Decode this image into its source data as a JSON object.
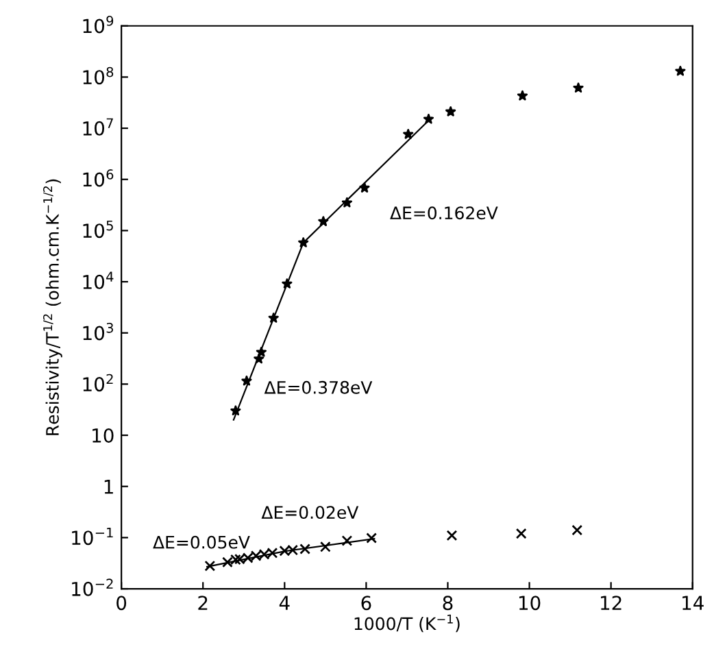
{
  "chart_data": {
    "type": "scatter",
    "xlabel": "1000/T (K$^{−1}$)",
    "ylabel": "Resistivity/T$^{1/2}$ (ohm.cm.K$^{−1/2}$)",
    "log": "y",
    "grid": false,
    "legend": false,
    "xlim": [
      0,
      14
    ],
    "xticks": [
      0,
      2,
      4,
      6,
      8,
      10,
      12,
      14
    ],
    "ylim": [
      0.01,
      1000000000
    ],
    "yticks": [
      {
        "value": 0.01,
        "label": "10$^{−2}$"
      },
      {
        "value": 0.1,
        "label": "10$^{−1}$"
      },
      {
        "value": 1,
        "label": "1"
      },
      {
        "value": 10,
        "label": "10"
      },
      {
        "value": 100,
        "label": "10$^{2}$"
      },
      {
        "value": 1000,
        "label": "10$^{3}$"
      },
      {
        "value": 10000,
        "label": "10$^{4}$"
      },
      {
        "value": 100000,
        "label": "10$^{5}$"
      },
      {
        "value": 1000000,
        "label": "10$^{6}$"
      },
      {
        "value": 10000000,
        "label": "10$^{7}$"
      },
      {
        "value": 100000000,
        "label": "10$^{8}$"
      },
      {
        "value": 1000000000,
        "label": "10$^{9}$"
      }
    ],
    "series": [
      {
        "marker": "star",
        "color": "#000000",
        "x": [
          2.8,
          3.07,
          3.37,
          3.43,
          3.73,
          4.06,
          4.46,
          4.95,
          5.53,
          5.96,
          7.03,
          7.53,
          8.07,
          9.83,
          11.2,
          13.7
        ],
        "values": [
          30,
          115,
          310,
          420,
          1950,
          9100,
          58000,
          150000,
          350000,
          680000,
          7600000,
          15000000,
          21000000,
          43000000,
          61000000,
          130000000
        ]
      },
      {
        "type": "line",
        "marker": "none",
        "color": "#000000",
        "x": [
          2.75,
          4.46
        ],
        "values": [
          20,
          58000
        ]
      },
      {
        "type": "line",
        "marker": "none",
        "color": "#000000",
        "x": [
          4.46,
          7.6
        ],
        "values": [
          58000,
          16000000
        ]
      },
      {
        "marker": "cross",
        "color": "#000000",
        "x": [
          2.17,
          2.6,
          2.8,
          2.9,
          3.1,
          3.3,
          3.5,
          3.7,
          4.0,
          4.2,
          4.5,
          5.0,
          5.53,
          6.13,
          8.1,
          9.8,
          11.17
        ],
        "values": [
          0.028,
          0.033,
          0.037,
          0.038,
          0.04,
          0.044,
          0.047,
          0.05,
          0.055,
          0.057,
          0.06,
          0.066,
          0.087,
          0.098,
          0.11,
          0.12,
          0.14
        ]
      },
      {
        "type": "line",
        "marker": "none",
        "color": "#000000",
        "x": [
          2.1,
          4.0
        ],
        "values": [
          0.027,
          0.054
        ]
      },
      {
        "type": "line",
        "marker": "none",
        "color": "#000000",
        "x": [
          4.0,
          6.2
        ],
        "values": [
          0.054,
          0.095
        ]
      }
    ],
    "annotations": [
      "ΔE=0.162eV",
      "ΔE=0.378eV",
      "ΔE=0.02eV",
      "ΔE=0.05eV"
    ]
  }
}
